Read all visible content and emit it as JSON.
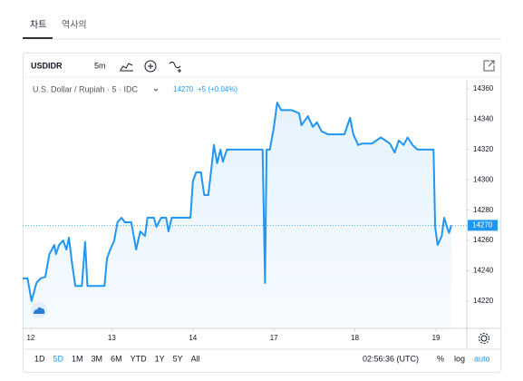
{
  "tabs": [
    "차트",
    "역사의"
  ],
  "toolbar": {
    "symbol": "USDIDR",
    "interval": "5m"
  },
  "legend": {
    "title": "U.S. Dollar / Rupiah · 5 · IDC",
    "change": "+5 (+0.04%)"
  },
  "chart_data": {
    "type": "area",
    "color": "#2196f3",
    "x": [
      -0.1,
      -0.04,
      0.01,
      0.07,
      0.12,
      0.18,
      0.23,
      0.29,
      0.31,
      0.35,
      0.4,
      0.44,
      0.47,
      0.51,
      0.55,
      0.63,
      0.67,
      0.7,
      0.91,
      0.94,
      0.98,
      1.03,
      1.07,
      1.12,
      1.16,
      1.24,
      1.3,
      1.35,
      1.41,
      1.44,
      1.52,
      1.55,
      1.61,
      1.67,
      1.7,
      1.74,
      1.97,
      2.0,
      2.04,
      2.1,
      2.14,
      2.19,
      2.23,
      2.26,
      2.3,
      2.34,
      2.37,
      2.42,
      2.86,
      2.89,
      2.91,
      2.95,
      3.0,
      3.04,
      3.09,
      3.22,
      3.31,
      3.34,
      3.42,
      3.48,
      3.53,
      3.59,
      3.67,
      3.87,
      3.94,
      3.98,
      4.04,
      4.09,
      4.21,
      4.32,
      4.43,
      4.49,
      4.54,
      4.6,
      4.65,
      4.71,
      4.77,
      4.97,
      4.99,
      5.02,
      5.07,
      5.1,
      5.16,
      5.19
    ],
    "values": [
      14235,
      14235,
      14220,
      14232,
      14235,
      14236,
      14251,
      14257,
      14251,
      14257,
      14260,
      14254,
      14262,
      14245,
      14230,
      14230,
      14259,
      14230,
      14230,
      14248,
      14254,
      14260,
      14272,
      14275,
      14272,
      14272,
      14254,
      14266,
      14263,
      14275,
      14275,
      14269,
      14275,
      14275,
      14266,
      14275,
      14275,
      14299,
      14305,
      14305,
      14290,
      14290,
      14308,
      14323,
      14311,
      14320,
      14312,
      14320,
      14320,
      14232,
      14320,
      14320,
      14335,
      14351,
      14346,
      14346,
      14344,
      14336,
      14342,
      14335,
      14338,
      14332,
      14330,
      14330,
      14341,
      14330,
      14323,
      14324,
      14324,
      14328,
      14324,
      14318,
      14326,
      14323,
      14328,
      14323,
      14320,
      14320,
      14269,
      14257,
      14263,
      14275,
      14265,
      14270
    ],
    "last_value": 14270,
    "xlim": [
      -0.1,
      5.38
    ],
    "xticks": [
      {
        "value": 0,
        "label": "12"
      },
      {
        "value": 1,
        "label": "13"
      },
      {
        "value": 2,
        "label": "14"
      },
      {
        "value": 3,
        "label": "17"
      },
      {
        "value": 4,
        "label": "18"
      },
      {
        "value": 5,
        "label": "19"
      }
    ],
    "ylim": [
      14202,
      14366
    ],
    "yticks": [
      14220,
      14240,
      14260,
      14280,
      14300,
      14320,
      14340,
      14360
    ]
  },
  "range_buttons": [
    "1D",
    "5D",
    "1M",
    "3M",
    "6M",
    "YTD",
    "1Y",
    "5Y",
    "All"
  ],
  "active_range": "5D",
  "footer": {
    "time": "02:56:36 (UTC)",
    "percent": "%",
    "log": "log",
    "auto": "auto"
  }
}
